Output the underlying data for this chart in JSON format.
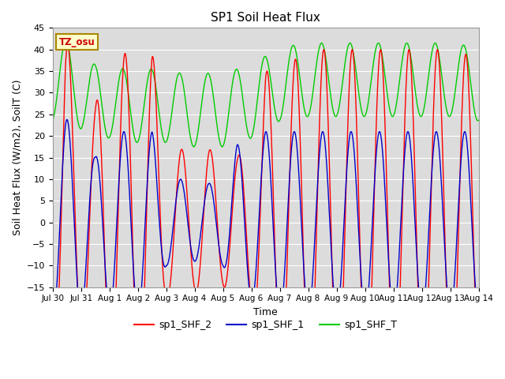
{
  "title": "SP1 Soil Heat Flux",
  "xlabel": "Time",
  "ylabel": "Soil Heat Flux (W/m2), SoilT (C)",
  "ylim": [
    -15,
    45
  ],
  "background_color": "#dcdcdc",
  "grid_color": "#ffffff",
  "line_colors": {
    "sp1_SHF_2": "#ff0000",
    "sp1_SHF_1": "#0000cc",
    "sp1_SHF_T": "#00cc00"
  },
  "tz_label": "TZ_osu",
  "yticks": [
    -15,
    -10,
    -5,
    0,
    5,
    10,
    15,
    20,
    25,
    30,
    35,
    40,
    45
  ],
  "xtick_labels": [
    "Jul 30",
    "Jul 31",
    "Aug 1",
    "Aug 2",
    "Aug 3",
    "Aug 4",
    "Aug 5",
    "Aug 6",
    "Aug 7",
    "Aug 8",
    "Aug 9",
    "Aug 10",
    "Aug 11",
    "Aug 12",
    "Aug 13",
    "Aug 14"
  ]
}
